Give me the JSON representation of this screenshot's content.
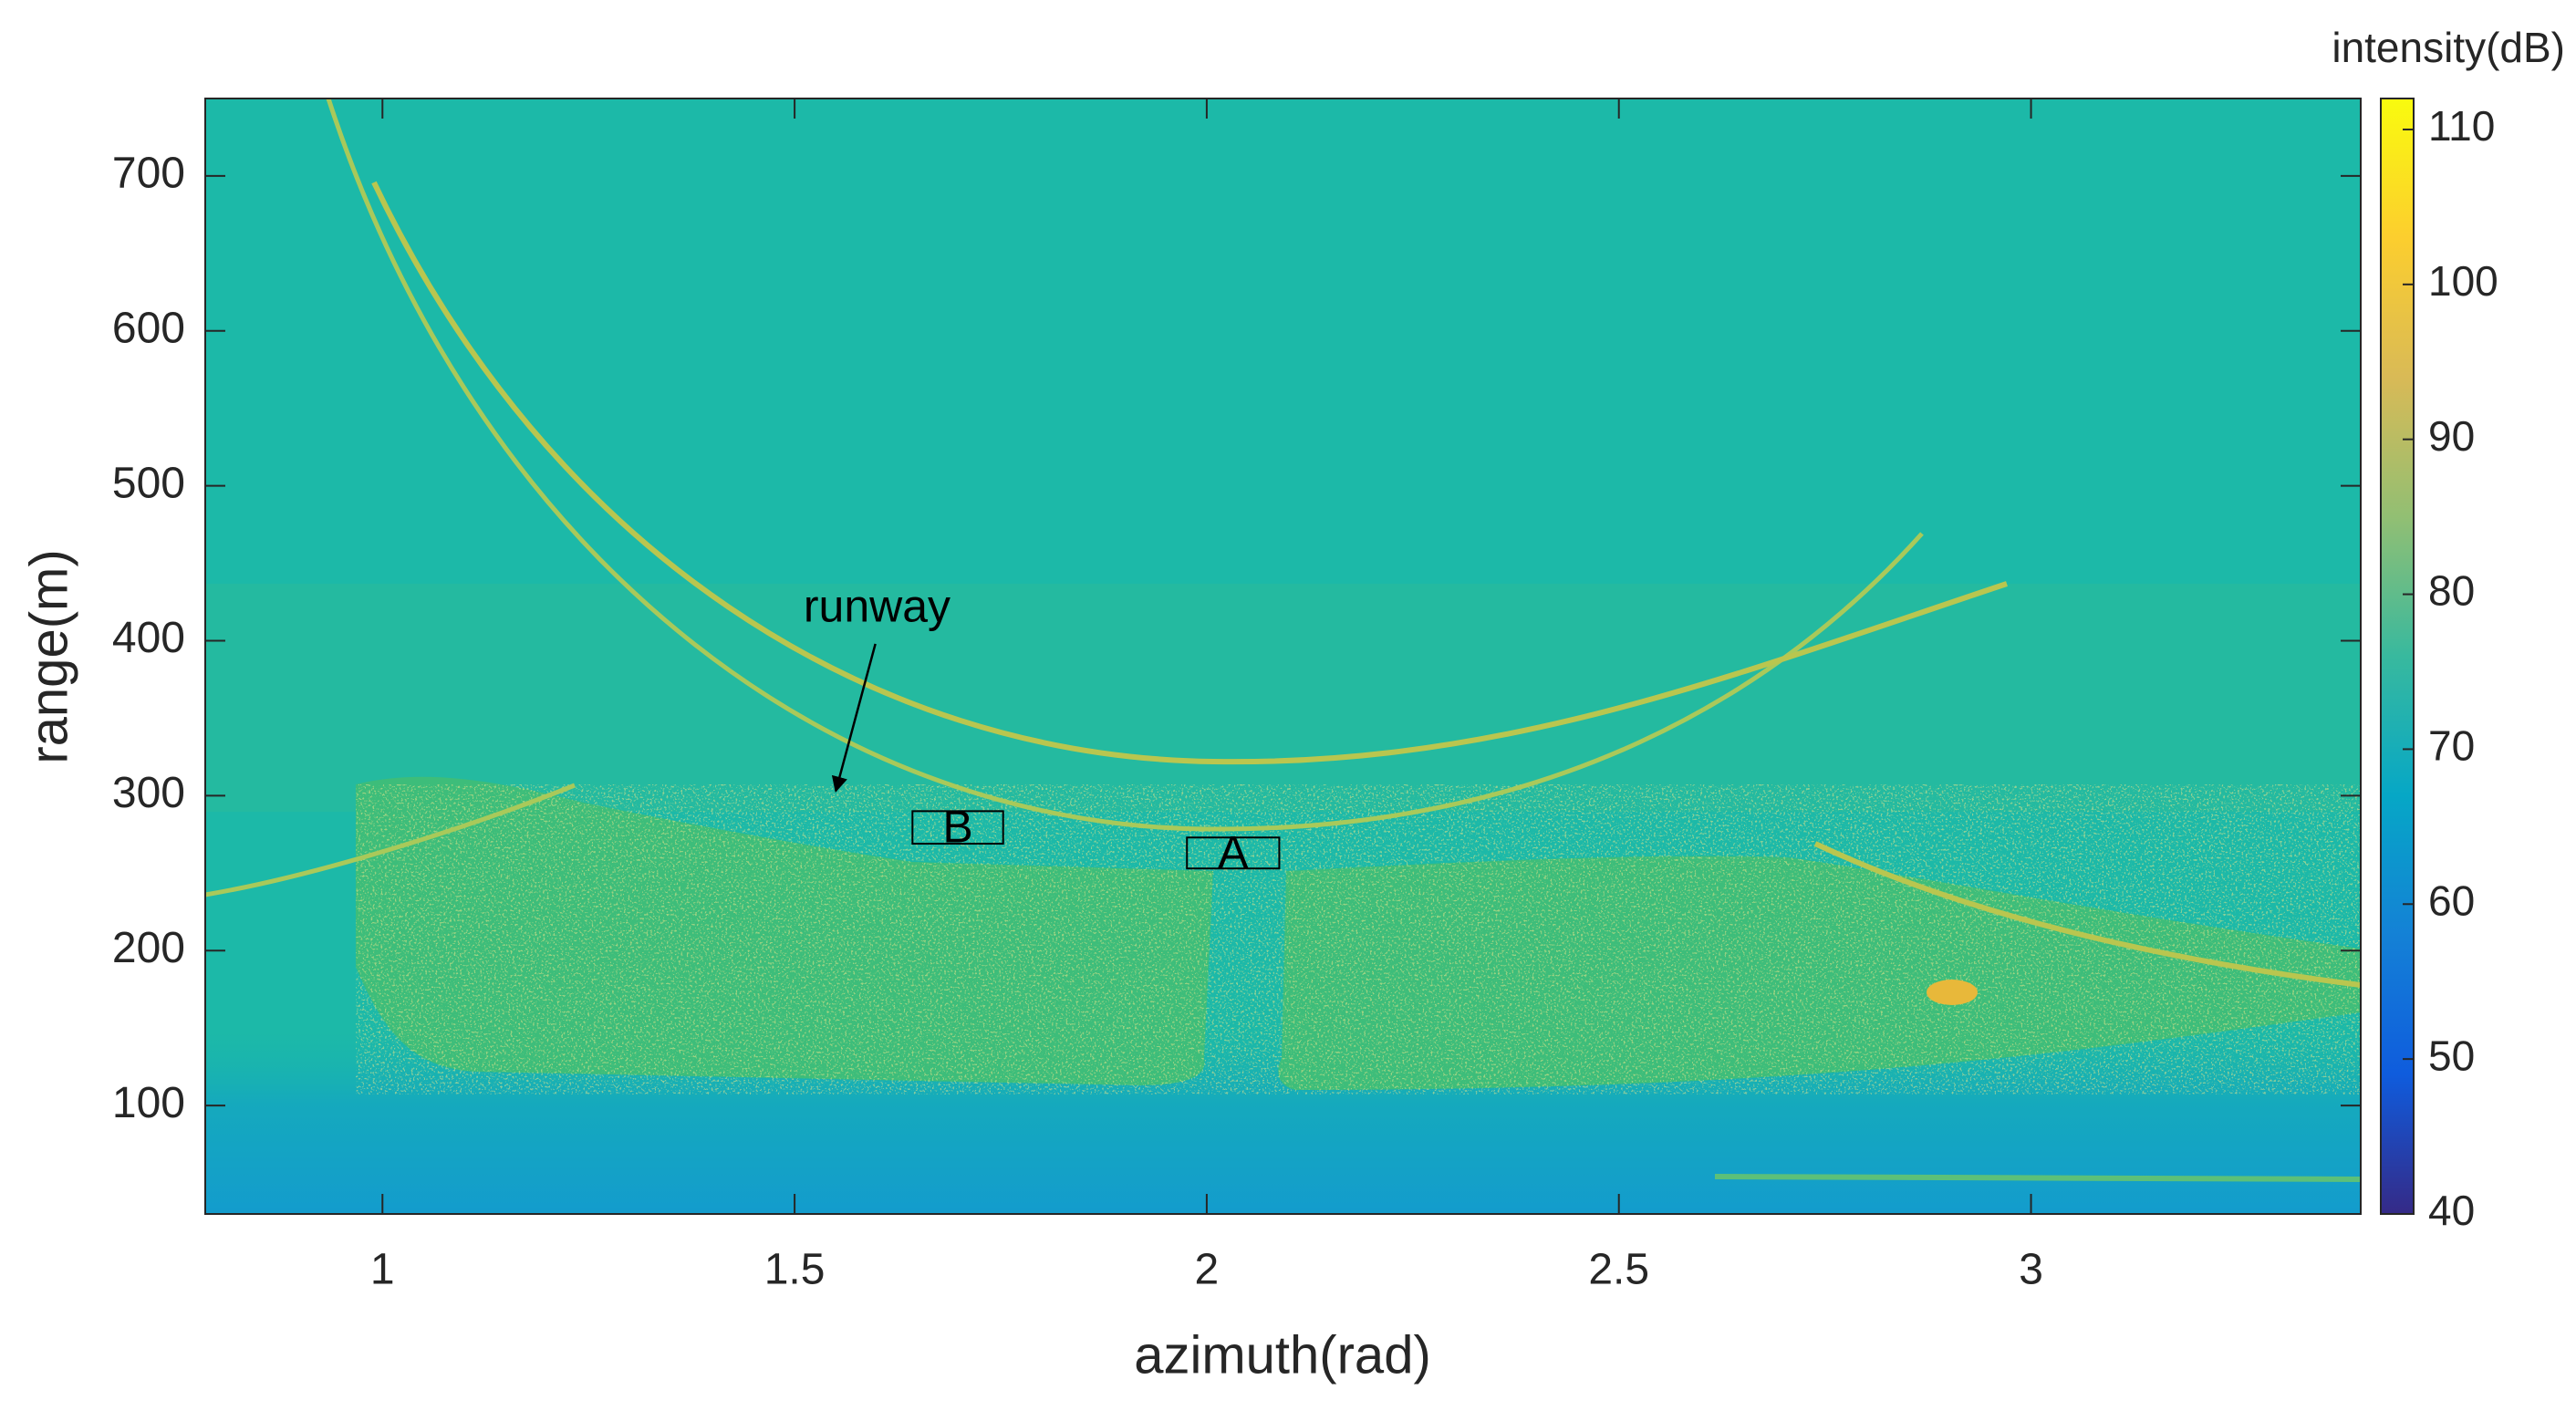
{
  "chart_data": {
    "type": "heatmap",
    "x_label": "azimuth(rad)",
    "y_label": "range(m)",
    "colorbar_label": "intensity(dB)",
    "xlim": [
      0.785,
      3.4
    ],
    "ylim": [
      30,
      750
    ],
    "xticks": [
      1,
      1.5,
      2,
      2.5,
      3
    ],
    "yticks": [
      100,
      200,
      300,
      400,
      500,
      600,
      700
    ],
    "clim": [
      40,
      112
    ],
    "cticks": [
      40,
      50,
      60,
      70,
      80,
      90,
      100,
      110
    ],
    "colormap": [
      "#352a87",
      "#0f5cdd",
      "#1481d6",
      "#06a7c6",
      "#38b99e",
      "#92bf73",
      "#d9ba56",
      "#fcce2e",
      "#f9fb0e"
    ],
    "annotations": [
      {
        "text": "runway",
        "x": 1.6,
        "y": 420,
        "arrow_from": [
          1.598,
          398
        ],
        "arrow_to": [
          1.55,
          303
        ]
      },
      {
        "text": "B",
        "x": [
          1.643,
          1.753
        ],
        "y": [
          269,
          290
        ]
      },
      {
        "text": "A",
        "x": [
          1.976,
          2.088
        ],
        "y": [
          253,
          273
        ]
      }
    ]
  }
}
